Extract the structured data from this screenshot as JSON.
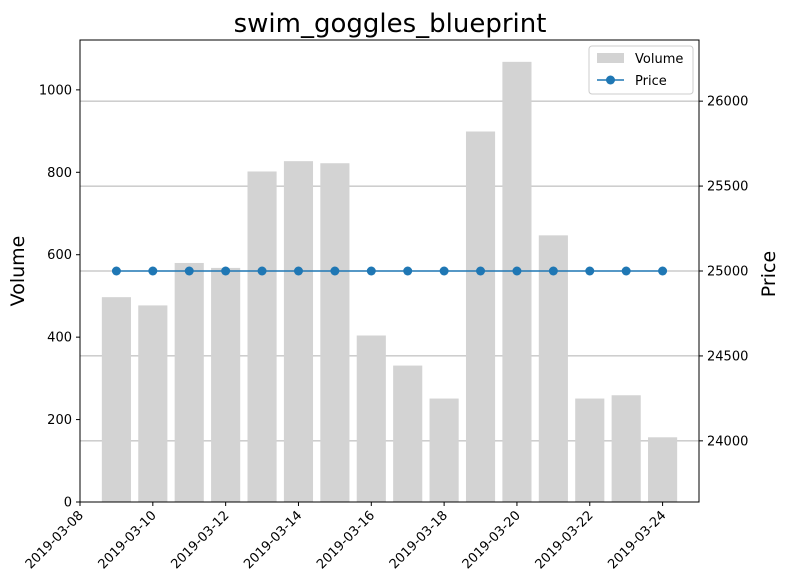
{
  "chart_data": {
    "type": "bar+line",
    "title": "swim_goggles_blueprint",
    "dates": [
      "2019-03-09",
      "2019-03-10",
      "2019-03-11",
      "2019-03-12",
      "2019-03-13",
      "2019-03-14",
      "2019-03-15",
      "2019-03-16",
      "2019-03-17",
      "2019-03-18",
      "2019-03-19",
      "2019-03-20",
      "2019-03-21",
      "2019-03-22",
      "2019-03-23",
      "2019-03-24"
    ],
    "series": [
      {
        "name": "Volume",
        "type": "bar",
        "axis": "left",
        "color": "#d3d3d3",
        "values": [
          497,
          477,
          580,
          568,
          802,
          827,
          822,
          404,
          331,
          251,
          899,
          1068,
          647,
          251,
          259,
          157
        ]
      },
      {
        "name": "Price",
        "type": "line",
        "axis": "right",
        "color": "#1f77b4",
        "values": [
          25000,
          25000,
          25000,
          25000,
          25000,
          25000,
          25000,
          25000,
          25000,
          25000,
          25000,
          25000,
          25000,
          25000,
          25000,
          25000
        ]
      }
    ],
    "xaxis": {
      "range": [
        "2019-03-08T00:00",
        "2019-03-25T00:00"
      ],
      "ticks": [
        "2019-03-08",
        "2019-03-10",
        "2019-03-12",
        "2019-03-14",
        "2019-03-16",
        "2019-03-18",
        "2019-03-20",
        "2019-03-22",
        "2019-03-24"
      ]
    },
    "yaxis_left": {
      "label": "Volume",
      "range": [
        0,
        1121
      ],
      "ticks": [
        0,
        200,
        400,
        600,
        800,
        1000
      ]
    },
    "yaxis_right": {
      "label": "Price",
      "range": [
        23640,
        26360
      ],
      "ticks": [
        24000,
        24500,
        25000,
        25500,
        26000
      ],
      "grid": true
    },
    "legend": {
      "position": "top-right"
    }
  }
}
